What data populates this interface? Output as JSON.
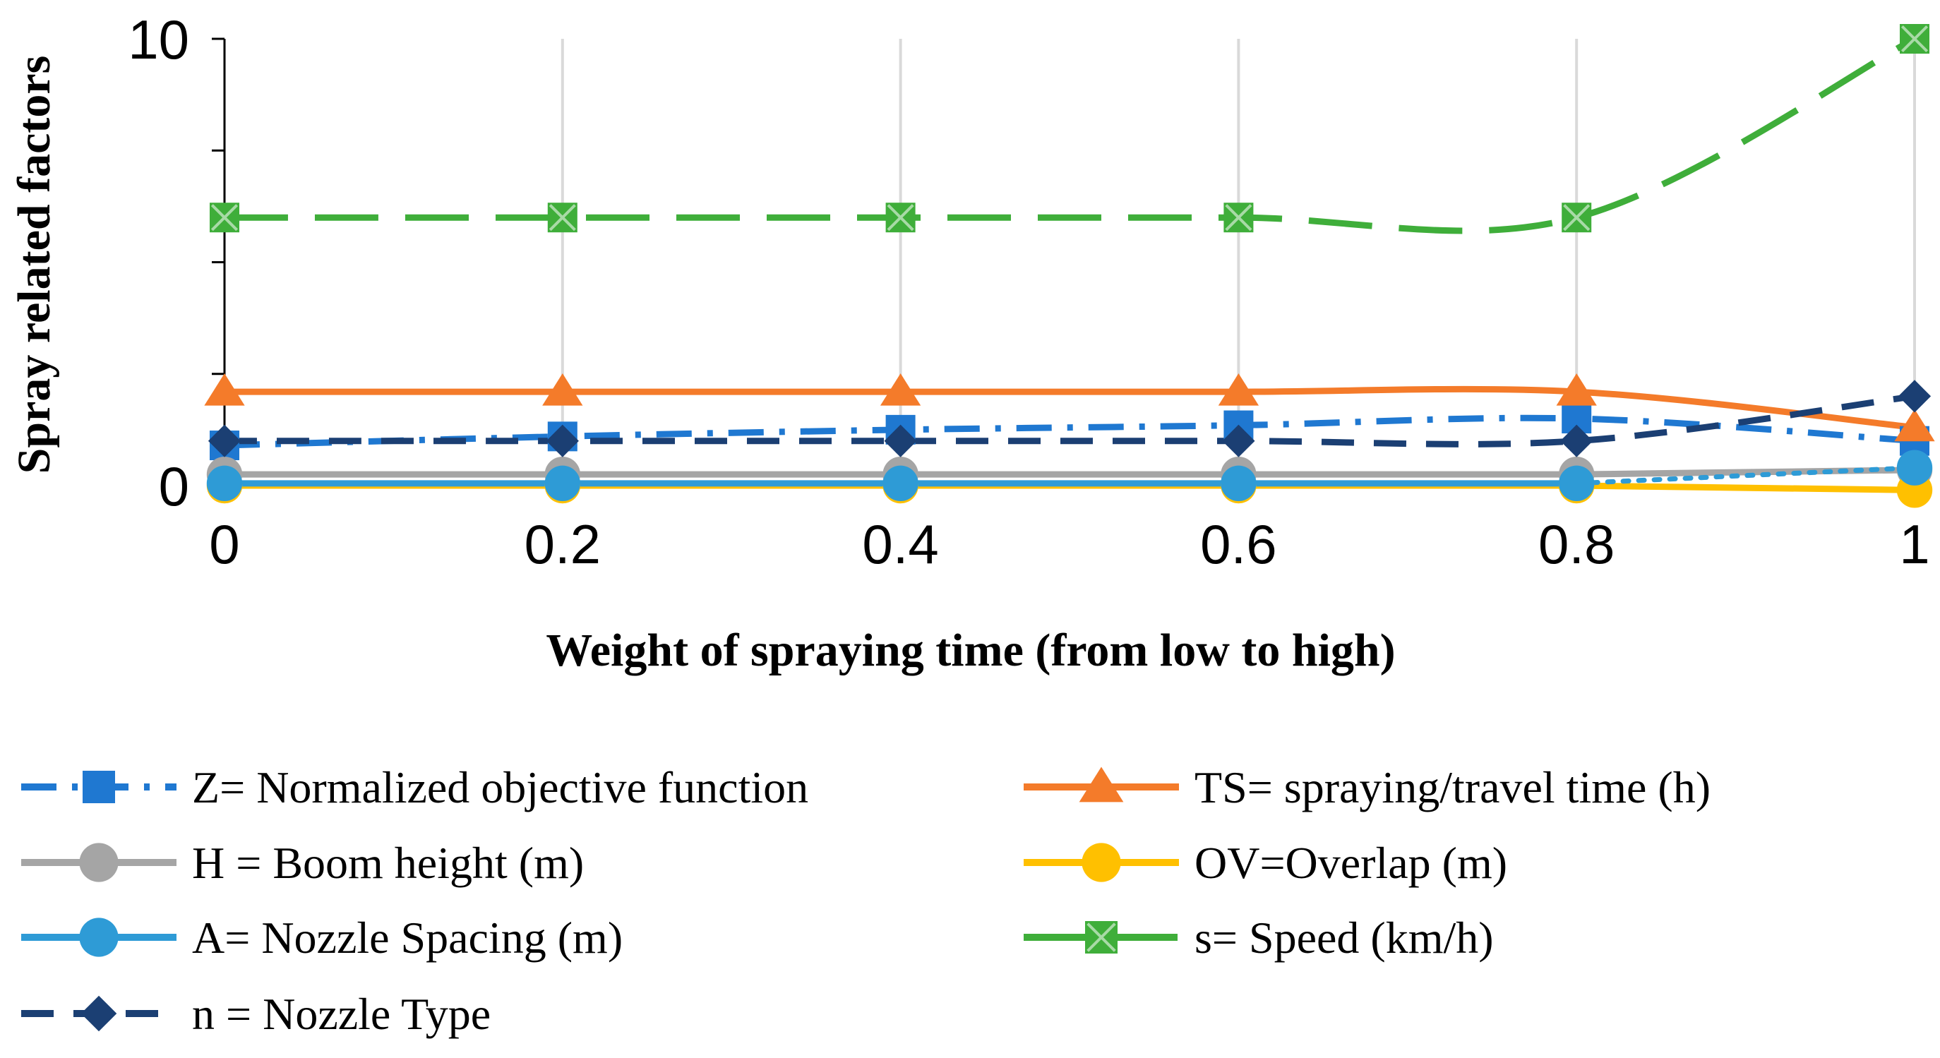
{
  "chart_data": {
    "type": "line",
    "title": "",
    "xlabel": "Weight of spraying time (from low to high)",
    "ylabel": "Spray related factors",
    "x": [
      0,
      0.2,
      0.4,
      0.6,
      0.8,
      1
    ],
    "x_tick_labels": [
      "0",
      "0.2",
      "0.4",
      "0.6",
      "0.8",
      "1"
    ],
    "y_tick_labels": [
      "0",
      "10"
    ],
    "xlim": [
      0,
      1
    ],
    "ylim": [
      0,
      10
    ],
    "grid": "vertical",
    "legend_position": "bottom",
    "series": [
      {
        "name": "Z= Normalized objective function",
        "values": [
          0.9,
          1.1,
          1.25,
          1.35,
          1.5,
          1.0
        ],
        "color": "#1f78d1",
        "dash": "dash-dot",
        "marker": "square",
        "smooth": true
      },
      {
        "name": "TS= spraying/travel time (h)",
        "values": [
          2.1,
          2.1,
          2.1,
          2.1,
          2.1,
          1.3
        ],
        "color": "#f47b2a",
        "dash": "solid",
        "marker": "triangle",
        "smooth": true
      },
      {
        "name": "H = Boom height (m)",
        "values": [
          0.25,
          0.25,
          0.25,
          0.25,
          0.25,
          0.35
        ],
        "color": "#a5a5a5",
        "dash": "solid",
        "marker": "circle",
        "smooth": false
      },
      {
        "name": "OV=Overlap (m)",
        "values": [
          0.0,
          0.0,
          0.0,
          0.0,
          0.0,
          -0.1
        ],
        "color": "#ffc000",
        "dash": "solid",
        "marker": "circle",
        "smooth": false
      },
      {
        "name": "A= Nozzle Spacing (m)",
        "values": [
          0.05,
          0.05,
          0.05,
          0.05,
          0.05,
          0.4
        ],
        "color": "#2e9bd6",
        "dash": "solid",
        "dash_last_segment": "dotted",
        "marker": "circle",
        "smooth": false
      },
      {
        "name": "s= Speed (km/h)",
        "values": [
          6,
          6,
          6,
          6,
          6,
          10
        ],
        "color": "#3fae3a",
        "dash": "long-dash",
        "marker": "square-x",
        "smooth": true
      },
      {
        "name": "n = Nozzle Type",
        "values": [
          1,
          1,
          1,
          1,
          1,
          2
        ],
        "color": "#1b3f73",
        "dash": "dash",
        "marker": "diamond",
        "smooth": true
      }
    ]
  }
}
